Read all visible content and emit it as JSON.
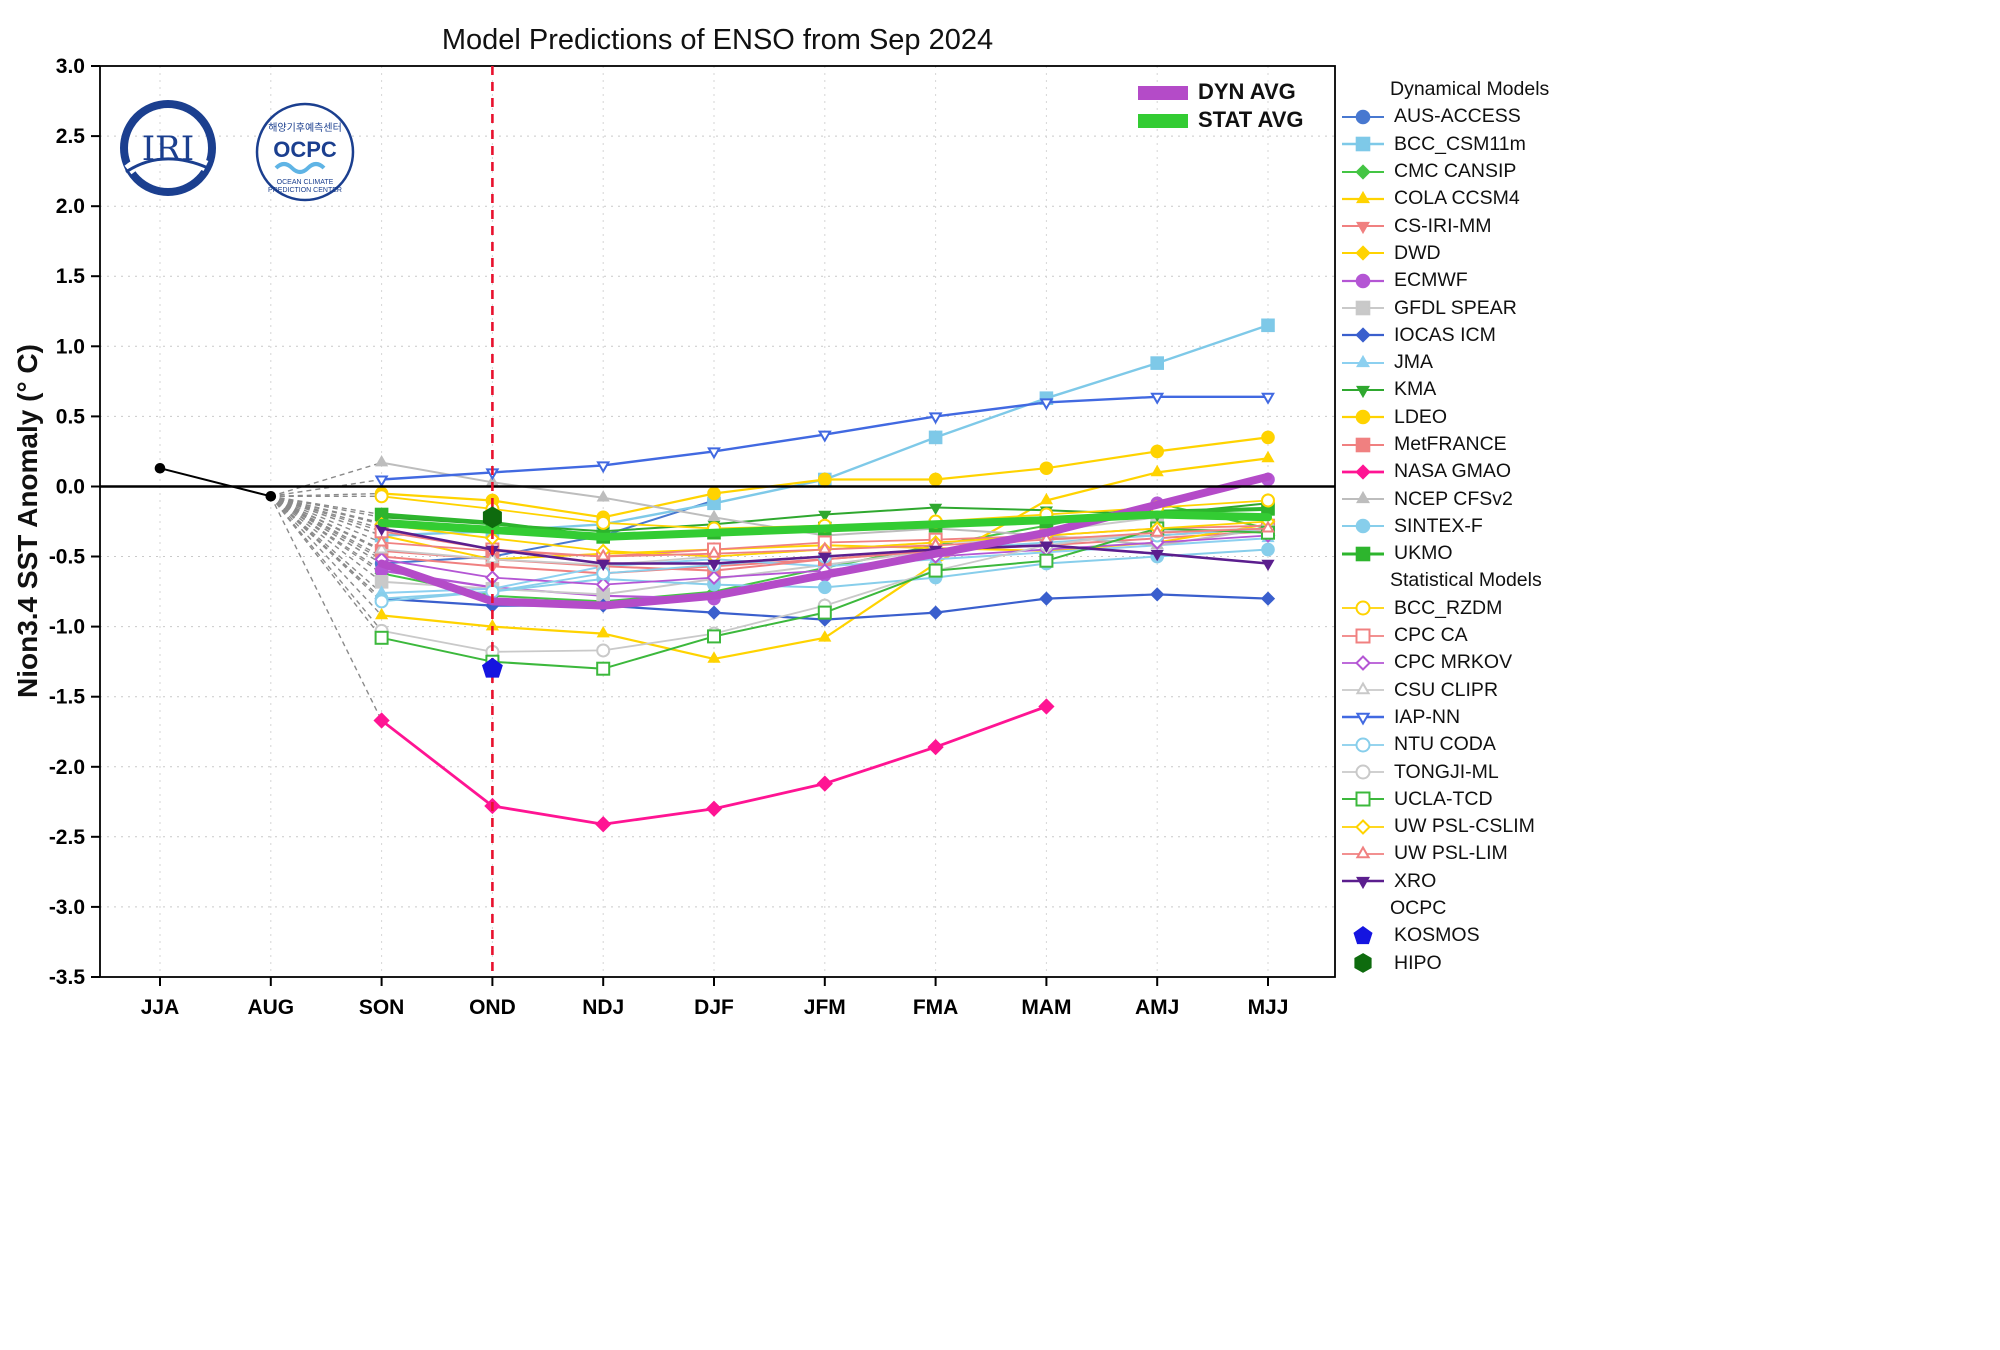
{
  "title": "Model Predictions of ENSO from Sep 2024",
  "y_axis_label": "Nion3.4 SST Anomaly (° C)",
  "logos": {
    "iri_text": "IRI",
    "ocpc_text": "OCPC",
    "ocpc_arc_top": "해양기후예측센터",
    "ocpc_arc_bottom_1": "OCEAN CLIMATE",
    "ocpc_arc_bottom_2": "PREDICTION CENTER"
  },
  "chart_data": {
    "type": "line",
    "title": "Model Predictions of ENSO from Sep 2024",
    "xlabel": "",
    "ylabel": "Nion3.4 SST Anomaly (° C)",
    "categories": [
      "JJA",
      "AUG",
      "SON",
      "OND",
      "NDJ",
      "DJF",
      "JFM",
      "FMA",
      "MAM",
      "AMJ",
      "MJJ"
    ],
    "ylim": [
      -3.5,
      3.0
    ],
    "y_ticks": [
      3.0,
      2.5,
      2.0,
      1.5,
      1.0,
      0.5,
      0.0,
      -0.5,
      -1.0,
      -1.5,
      -2.0,
      -2.5,
      -3.0,
      -3.5
    ],
    "grid": true,
    "zero_line": 0.0,
    "forecast_line_category": "OND",
    "forecast_line_color": "#E8112D",
    "legend_sections": [
      {
        "group": "dynamical",
        "title": "Dynamical Models"
      },
      {
        "group": "statistical",
        "title": "Statistical Models"
      },
      {
        "group": "ocpc",
        "title": "OCPC"
      }
    ],
    "series": [
      {
        "name": "Observed",
        "group": "observed",
        "color": "#000000",
        "marker": "circle",
        "open": false,
        "width": 2,
        "start": 0,
        "values": [
          0.13,
          -0.07
        ]
      },
      {
        "name": "AUS-ACCESS",
        "group": "dynamical",
        "color": "#4878D0",
        "marker": "circle",
        "open": false,
        "width": 2,
        "start": 2,
        "values": [
          -0.55,
          -0.5,
          -0.35,
          -0.1
        ]
      },
      {
        "name": "BCC_CSM11m",
        "group": "dynamical",
        "color": "#7EC9E8",
        "marker": "square",
        "open": false,
        "width": 2.4,
        "start": 2,
        "values": [
          -0.35,
          -0.32,
          -0.27,
          -0.12,
          0.05,
          0.35,
          0.63,
          0.88,
          1.15
        ]
      },
      {
        "name": "CMC CANSIP",
        "group": "dynamical",
        "color": "#44C544",
        "marker": "diamond",
        "open": false,
        "width": 2,
        "start": 2,
        "values": [
          -0.62,
          -0.78,
          -0.82,
          -0.75,
          -0.58,
          -0.42,
          -0.28,
          -0.12,
          -0.3
        ]
      },
      {
        "name": "COLA CCSM4",
        "group": "dynamical",
        "color": "#FFD300",
        "marker": "triangle_up",
        "open": false,
        "width": 2.2,
        "start": 2,
        "values": [
          -0.92,
          -1.0,
          -1.05,
          -1.23,
          -1.08,
          -0.55,
          -0.1,
          0.1,
          0.2
        ]
      },
      {
        "name": "CS-IRI-MM",
        "group": "dynamical",
        "color": "#F08080",
        "marker": "triangle_down",
        "open": false,
        "width": 2,
        "start": 2,
        "values": [
          -0.5,
          -0.57,
          -0.62,
          -0.57,
          -0.52,
          -0.46,
          -0.42,
          -0.37,
          -0.32
        ]
      },
      {
        "name": "DWD",
        "group": "dynamical",
        "color": "#FFD300",
        "marker": "diamond",
        "open": false,
        "width": 2,
        "start": 2,
        "values": [
          -0.35,
          -0.52,
          -0.48,
          -0.45,
          -0.42,
          -0.44,
          -0.46,
          -0.4,
          -0.27
        ]
      },
      {
        "name": "ECMWF",
        "group": "dynamical",
        "color": "#B456D4",
        "marker": "circle",
        "open": false,
        "width": 2.2,
        "start": 2,
        "values": [
          -0.6,
          -0.72,
          -0.78,
          -0.8,
          -0.63,
          -0.48,
          -0.33,
          -0.12,
          0.05
        ]
      },
      {
        "name": "GFDL SPEAR",
        "group": "dynamical",
        "color": "#C9C9C9",
        "marker": "square",
        "open": false,
        "width": 2,
        "start": 2,
        "values": [
          -0.68,
          -0.73,
          -0.77,
          -0.66,
          -0.56,
          -0.46,
          -0.32,
          -0.22,
          -0.15
        ]
      },
      {
        "name": "IOCAS ICM",
        "group": "dynamical",
        "color": "#3A5FCD",
        "marker": "diamond",
        "open": false,
        "width": 2.2,
        "start": 2,
        "values": [
          -0.8,
          -0.85,
          -0.85,
          -0.9,
          -0.95,
          -0.9,
          -0.8,
          -0.77,
          -0.8
        ]
      },
      {
        "name": "JMA",
        "group": "dynamical",
        "color": "#8CD0F0",
        "marker": "triangle_up",
        "open": false,
        "width": 2,
        "start": 2,
        "values": [
          -0.76,
          -0.73,
          -0.57,
          -0.52,
          -0.57,
          -0.52,
          -0.47,
          -0.42,
          -0.37
        ]
      },
      {
        "name": "KMA",
        "group": "dynamical",
        "color": "#2FA82F",
        "marker": "triangle_down",
        "open": false,
        "width": 2,
        "start": 2,
        "values": [
          -0.22,
          -0.27,
          -0.32,
          -0.27,
          -0.2,
          -0.15,
          -0.17,
          -0.2,
          -0.12
        ]
      },
      {
        "name": "LDEO",
        "group": "dynamical",
        "color": "#FFD300",
        "marker": "circle",
        "open": false,
        "width": 2.2,
        "start": 2,
        "values": [
          -0.05,
          -0.1,
          -0.22,
          -0.05,
          0.05,
          0.05,
          0.13,
          0.25,
          0.35
        ]
      },
      {
        "name": "MetFRANCE",
        "group": "dynamical",
        "color": "#F08080",
        "marker": "square",
        "open": false,
        "width": 2,
        "start": 2,
        "values": [
          -0.46,
          -0.52,
          -0.57,
          -0.6,
          -0.52,
          -0.46,
          -0.37,
          -0.35,
          -0.3
        ]
      },
      {
        "name": "NASA GMAO",
        "group": "dynamical",
        "color": "#FF1493",
        "marker": "diamond",
        "open": false,
        "width": 2.8,
        "start": 2,
        "values": [
          -1.67,
          -2.28,
          -2.41,
          -2.3,
          -2.12,
          -1.86,
          -1.57
        ]
      },
      {
        "name": "NCEP CFSv2",
        "group": "dynamical",
        "color": "#BDBDBD",
        "marker": "triangle_up",
        "open": false,
        "width": 2,
        "start": 2,
        "values": [
          0.17,
          0.03,
          -0.08,
          -0.22,
          -0.35,
          -0.3,
          -0.35,
          -0.42,
          -0.3
        ]
      },
      {
        "name": "SINTEX-F",
        "group": "dynamical",
        "color": "#87CEEB",
        "marker": "circle",
        "open": false,
        "width": 2,
        "start": 2,
        "values": [
          -0.8,
          -0.75,
          -0.66,
          -0.7,
          -0.72,
          -0.65,
          -0.55,
          -0.5,
          -0.45
        ]
      },
      {
        "name": "UKMO",
        "group": "dynamical",
        "color": "#2DB52D",
        "marker": "square",
        "open": false,
        "width": 4,
        "start": 2,
        "values": [
          -0.2,
          -0.26,
          -0.36,
          -0.33,
          -0.3,
          -0.28,
          -0.25,
          -0.18,
          -0.16
        ]
      },
      {
        "name": "BCC_RZDM",
        "group": "statistical",
        "color": "#FFD300",
        "marker": "circle",
        "open": true,
        "width": 1.8,
        "start": 2,
        "values": [
          -0.07,
          -0.16,
          -0.26,
          -0.3,
          -0.28,
          -0.25,
          -0.2,
          -0.15,
          -0.1
        ]
      },
      {
        "name": "CPC CA",
        "group": "statistical",
        "color": "#F08080",
        "marker": "square",
        "open": true,
        "width": 1.8,
        "start": 2,
        "values": [
          -0.32,
          -0.45,
          -0.5,
          -0.45,
          -0.4,
          -0.38,
          -0.35,
          -0.3,
          -0.28
        ]
      },
      {
        "name": "CPC MRKOV",
        "group": "statistical",
        "color": "#B456D4",
        "marker": "diamond",
        "open": true,
        "width": 1.8,
        "start": 2,
        "values": [
          -0.52,
          -0.65,
          -0.7,
          -0.65,
          -0.6,
          -0.5,
          -0.45,
          -0.4,
          -0.35
        ]
      },
      {
        "name": "CSU CLIPR",
        "group": "statistical",
        "color": "#C9C9C9",
        "marker": "triangle_up",
        "open": true,
        "width": 1.8,
        "start": 2,
        "values": [
          -0.45,
          -0.52,
          -0.56,
          -0.5,
          -0.45,
          -0.4,
          -0.38,
          -0.35,
          -0.3
        ]
      },
      {
        "name": "IAP-NN",
        "group": "statistical",
        "color": "#4169E1",
        "marker": "triangle_down",
        "open": true,
        "width": 2.4,
        "start": 2,
        "values": [
          0.05,
          0.1,
          0.15,
          0.25,
          0.37,
          0.5,
          0.6,
          0.64,
          0.64
        ]
      },
      {
        "name": "NTU CODA",
        "group": "statistical",
        "color": "#87CEEB",
        "marker": "circle",
        "open": true,
        "width": 1.8,
        "start": 2,
        "values": [
          -0.82,
          -0.75,
          -0.62,
          -0.56,
          -0.5,
          -0.45,
          -0.4,
          -0.35,
          -0.3
        ]
      },
      {
        "name": "TONGJI-ML",
        "group": "statistical",
        "color": "#C9C9C9",
        "marker": "circle",
        "open": true,
        "width": 1.8,
        "start": 2,
        "values": [
          -1.03,
          -1.18,
          -1.17,
          -1.05,
          -0.85,
          -0.6,
          -0.42,
          -0.32,
          -0.3
        ]
      },
      {
        "name": "UCLA-TCD",
        "group": "statistical",
        "color": "#3CB83C",
        "marker": "square",
        "open": true,
        "width": 2,
        "start": 2,
        "values": [
          -1.08,
          -1.25,
          -1.3,
          -1.07,
          -0.9,
          -0.6,
          -0.53,
          -0.3,
          -0.33
        ]
      },
      {
        "name": "UW PSL-CSLIM",
        "group": "statistical",
        "color": "#FFD300",
        "marker": "diamond",
        "open": true,
        "width": 1.8,
        "start": 2,
        "values": [
          -0.27,
          -0.37,
          -0.46,
          -0.5,
          -0.45,
          -0.4,
          -0.35,
          -0.3,
          -0.25
        ]
      },
      {
        "name": "UW PSL-LIM",
        "group": "statistical",
        "color": "#F08080",
        "marker": "triangle_up",
        "open": true,
        "width": 1.8,
        "start": 2,
        "values": [
          -0.4,
          -0.46,
          -0.5,
          -0.48,
          -0.45,
          -0.42,
          -0.38,
          -0.33,
          -0.3
        ]
      },
      {
        "name": "XRO",
        "group": "statistical",
        "color": "#5B1E8E",
        "marker": "triangle_down",
        "open": false,
        "width": 2.6,
        "start": 2,
        "values": [
          -0.3,
          -0.45,
          -0.55,
          -0.55,
          -0.5,
          -0.45,
          -0.42,
          -0.48,
          -0.55
        ]
      },
      {
        "name": "DYN AVG",
        "group": "avg",
        "color": "#B44BC8",
        "marker": "none",
        "open": false,
        "width": 8,
        "start": 2,
        "values": [
          -0.55,
          -0.82,
          -0.85,
          -0.78,
          -0.63,
          -0.48,
          -0.33,
          -0.13,
          0.07
        ]
      },
      {
        "name": "STAT AVG",
        "group": "avg",
        "color": "#33CC33",
        "marker": "none",
        "open": false,
        "width": 8,
        "start": 2,
        "values": [
          -0.26,
          -0.31,
          -0.36,
          -0.33,
          -0.3,
          -0.27,
          -0.24,
          -0.2,
          -0.22
        ]
      },
      {
        "name": "KOSMOS",
        "group": "ocpc",
        "color": "#1515E0",
        "marker": "pentagon",
        "open": false,
        "width": 0,
        "start": 3,
        "values": [
          -1.3
        ]
      },
      {
        "name": "HIPO",
        "group": "ocpc",
        "color": "#0E6B0E",
        "marker": "hexagon",
        "open": false,
        "width": 0,
        "start": 3,
        "values": [
          -0.22
        ]
      }
    ]
  }
}
